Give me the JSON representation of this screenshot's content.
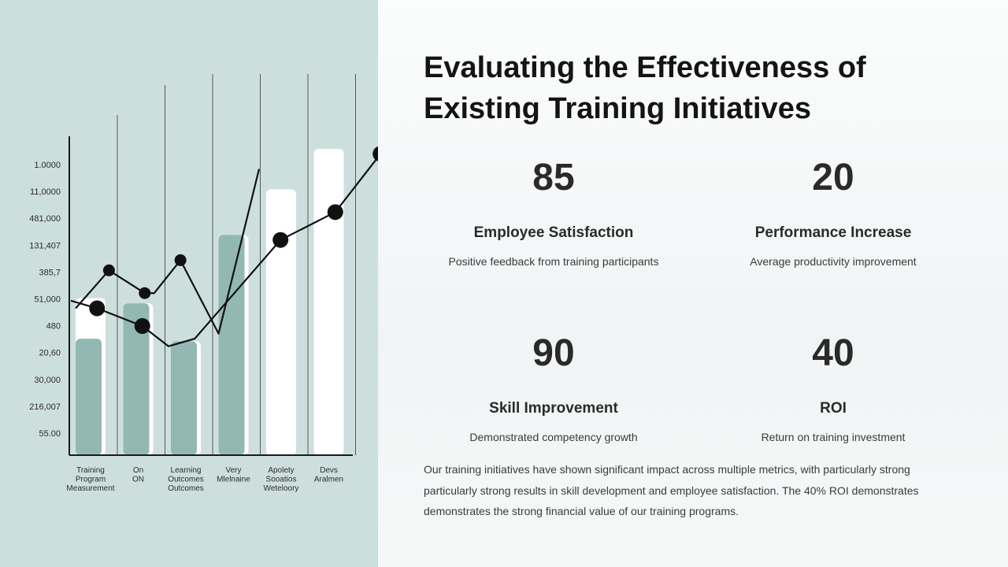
{
  "slide": {
    "title": "Evaluating the Effectiveness of Existing Training Initiatives",
    "stats": [
      {
        "value": "85",
        "label": "Employee Satisfaction",
        "description": "Positive feedback from training participants"
      },
      {
        "value": "20",
        "label": "Performance Increase",
        "description": "Average productivity improvement"
      },
      {
        "value": "90",
        "label": "Skill Improvement",
        "description": "Demonstrated competency growth"
      },
      {
        "value": "40",
        "label": "ROI",
        "description": "Return on training investment"
      }
    ],
    "summary": "Our training initiatives have shown significant impact across multiple metrics, with particularly strong particularly strong results in skill development and employee satisfaction. The 40% ROI demonstrates demonstrates the strong financial value of our training programs."
  },
  "colors": {
    "left_panel_bg": "#cddfdd",
    "bar_teal": "#93b8b3",
    "bar_white": "#ffffff",
    "line": "#111111"
  },
  "chart_data": {
    "type": "bar",
    "y_tick_labels": [
      "1.0000",
      "11,0000",
      "481,000",
      "131,407",
      "385,7",
      "51,000",
      "480",
      "20,60",
      "30,000",
      "216,007",
      "55.00"
    ],
    "categories": [
      [
        "Training",
        "Program",
        "Measurement"
      ],
      [
        "On",
        "ON"
      ],
      [
        "Learning",
        "Outcomes",
        "Outcomes"
      ],
      [
        "Very",
        "Mlelnaine"
      ],
      [
        "Apolety",
        "Sooatios",
        "Weteloory"
      ],
      [
        "Devs",
        "Aralmen"
      ]
    ],
    "bars": [
      {
        "teal": 4.6,
        "white": 6.2
      },
      {
        "teal": 6.0,
        "white": 6.0
      },
      {
        "teal": 4.5,
        "white": 4.5
      },
      {
        "teal": 8.7,
        "white": 8.7
      },
      {
        "teal": null,
        "white": 10.5
      },
      {
        "teal": null,
        "white": 12.1
      }
    ],
    "series": [
      {
        "points": [
          [
            0.1,
            5.8
          ],
          [
            0.8,
            7.3
          ],
          [
            1.55,
            6.4
          ],
          [
            1.75,
            6.4
          ],
          [
            2.3,
            7.7
          ],
          [
            3.1,
            4.8
          ],
          [
            3.95,
            11.3
          ]
        ],
        "marker_x": [
          0.8,
          1.55,
          2.3
        ],
        "marker_size": "small"
      },
      {
        "points": [
          [
            0.0,
            6.1
          ],
          [
            0.55,
            5.8
          ],
          [
            1.5,
            5.1
          ],
          [
            2.05,
            4.3
          ],
          [
            2.6,
            4.6
          ],
          [
            4.4,
            8.5
          ],
          [
            5.55,
            9.6
          ],
          [
            6.5,
            11.9
          ]
        ],
        "marker_x": [
          0.55,
          1.5,
          4.4,
          5.55,
          6.5
        ],
        "marker_size": "large"
      }
    ],
    "ylim": [
      0,
      13
    ],
    "grid": false
  }
}
